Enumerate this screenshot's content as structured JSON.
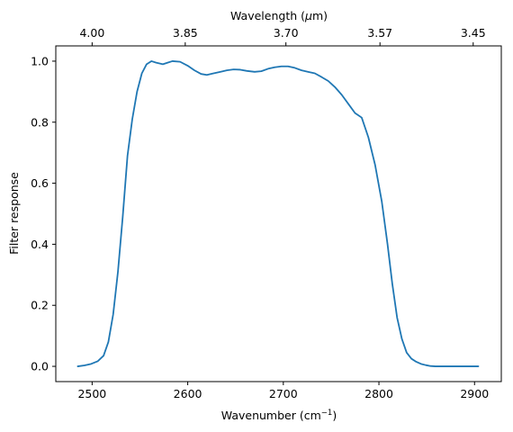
{
  "chart_data": {
    "type": "line",
    "title": "",
    "xlabel": "Wavenumber (cm",
    "xlabel_sup": "−1",
    "xlabel_tail": ")",
    "ylabel": "Filter response",
    "secondary_xlabel": "Wavelength (",
    "secondary_xlabel_unit": "μ",
    "secondary_xlabel_tail": "m)",
    "xlim": [
      2462,
      2928
    ],
    "ylim": [
      -0.05,
      1.05
    ],
    "grid": false,
    "line_color": "#1f77b4",
    "x_ticks": [
      {
        "value": 2500,
        "label": "2500"
      },
      {
        "value": 2600,
        "label": "2600"
      },
      {
        "value": 2700,
        "label": "2700"
      },
      {
        "value": 2800,
        "label": "2800"
      },
      {
        "value": 2900,
        "label": "2900"
      }
    ],
    "y_ticks": [
      {
        "value": 0.0,
        "label": "0.0"
      },
      {
        "value": 0.2,
        "label": "0.2"
      },
      {
        "value": 0.4,
        "label": "0.4"
      },
      {
        "value": 0.6,
        "label": "0.6"
      },
      {
        "value": 0.8,
        "label": "0.8"
      },
      {
        "value": 1.0,
        "label": "1.0"
      }
    ],
    "secondary_ticks": [
      {
        "label": "4.00",
        "wavenumber": 2500
      },
      {
        "label": "3.85",
        "wavenumber": 2597.4
      },
      {
        "label": "3.70",
        "wavenumber": 2702.7
      },
      {
        "label": "3.57",
        "wavenumber": 2801.1
      },
      {
        "label": "3.45",
        "wavenumber": 2898.6
      }
    ],
    "series": [
      {
        "x": [
          2485,
          2492,
          2499,
          2506,
          2512,
          2517,
          2522,
          2527,
          2532,
          2537,
          2542,
          2547,
          2552,
          2557,
          2562,
          2567,
          2574,
          2579,
          2584,
          2592,
          2600,
          2607,
          2614,
          2620,
          2627,
          2634,
          2641,
          2648,
          2655,
          2662,
          2670,
          2677,
          2684,
          2691,
          2698,
          2705,
          2712,
          2719,
          2726,
          2733,
          2740,
          2747,
          2754,
          2761,
          2768,
          2775,
          2782,
          2789,
          2796,
          2803,
          2809,
          2814,
          2819,
          2824,
          2829,
          2834,
          2839,
          2844,
          2849,
          2854,
          2859,
          2864,
          2869,
          2874,
          2881,
          2888,
          2895,
          2904
        ],
        "y": [
          0.0,
          0.003,
          0.008,
          0.017,
          0.035,
          0.08,
          0.17,
          0.31,
          0.49,
          0.69,
          0.81,
          0.9,
          0.96,
          0.99,
          1.0,
          0.995,
          0.99,
          0.995,
          1.0,
          0.998,
          0.985,
          0.97,
          0.958,
          0.955,
          0.96,
          0.965,
          0.97,
          0.973,
          0.972,
          0.968,
          0.965,
          0.967,
          0.975,
          0.98,
          0.983,
          0.983,
          0.978,
          0.97,
          0.965,
          0.96,
          0.948,
          0.935,
          0.915,
          0.89,
          0.86,
          0.83,
          0.815,
          0.75,
          0.66,
          0.54,
          0.4,
          0.27,
          0.16,
          0.09,
          0.045,
          0.025,
          0.015,
          0.008,
          0.004,
          0.001,
          0.0,
          0.0,
          0.0,
          0.0,
          0.0,
          0.0,
          0.0,
          0.0
        ]
      }
    ]
  }
}
